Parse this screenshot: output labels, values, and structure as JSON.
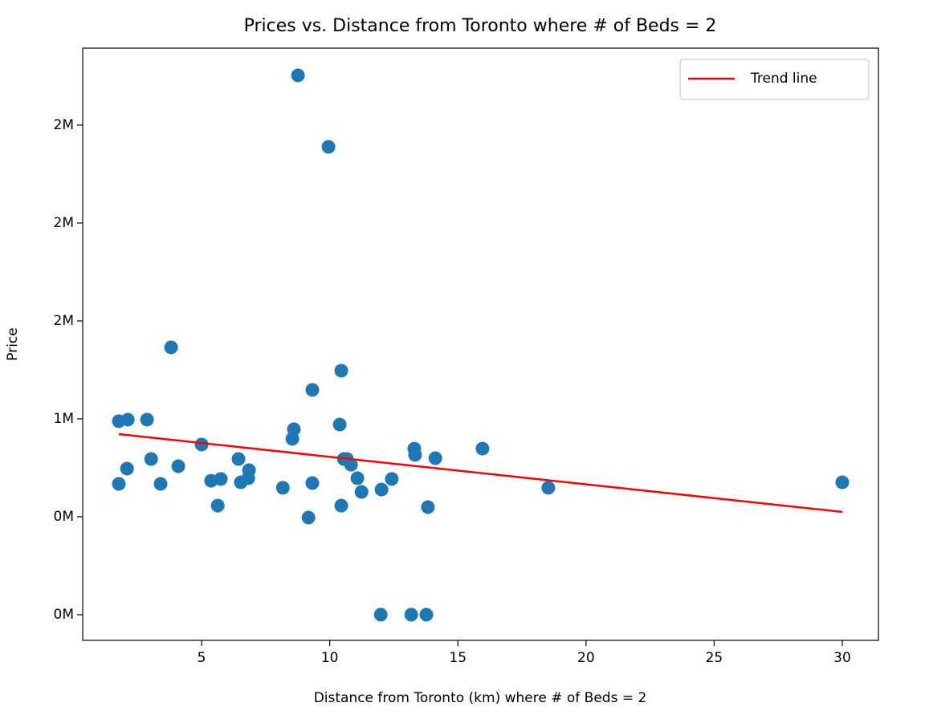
{
  "chart_data": {
    "type": "scatter",
    "title": "Prices vs. Distance from Toronto where # of Beds = 2",
    "x_label": "Distance from Toronto (km) where # of Beds = 2",
    "y_label": "Price",
    "xlim": [
      0.36,
      31.41
    ],
    "ylim": [
      -131000,
      2893000
    ],
    "xticks": [
      5,
      10,
      15,
      20,
      25,
      30
    ],
    "yticks": [
      {
        "value": 0,
        "label": "0M"
      },
      {
        "value": 500000,
        "label": "0M"
      },
      {
        "value": 1000000,
        "label": "1M"
      },
      {
        "value": 1500000,
        "label": "2M"
      },
      {
        "value": 2000000,
        "label": "2M"
      },
      {
        "value": 2500000,
        "label": "2M"
      }
    ],
    "legend": "upper right",
    "series": [
      {
        "color": "#1f77b4",
        "x": [
          8.76,
          9.95,
          3.81,
          10.45,
          9.32,
          1.77,
          2.12,
          2.87,
          10.39,
          8.6,
          8.54,
          5.0,
          13.3,
          15.96,
          13.33,
          14.12,
          3.03,
          6.44,
          10.55,
          10.67,
          10.83,
          4.09,
          2.09,
          6.85,
          5.75,
          5.37,
          6.82,
          11.08,
          12.42,
          6.53,
          9.32,
          1.77,
          3.4,
          18.53,
          30.0,
          8.17,
          11.24,
          12.02,
          5.63,
          10.45,
          13.83,
          9.17,
          11.99,
          13.18,
          13.77
        ],
        "values": [
          2754000,
          2389000,
          1365000,
          1246000,
          1148000,
          988000,
          996000,
          996000,
          971000,
          947000,
          898000,
          869000,
          848000,
          848000,
          816000,
          799000,
          795000,
          795000,
          795000,
          795000,
          766000,
          758000,
          746000,
          738000,
          693000,
          684000,
          697000,
          697000,
          693000,
          676000,
          672000,
          668000,
          668000,
          648000,
          676000,
          648000,
          627000,
          639000,
          557000,
          557000,
          549000,
          496000,
          0,
          0,
          0
        ]
      },
      {
        "name": "Trend line",
        "color": "#ff0000",
        "line": true,
        "x": [
          1.77,
          30.0
        ],
        "values": [
          922000,
          525000
        ]
      }
    ]
  }
}
